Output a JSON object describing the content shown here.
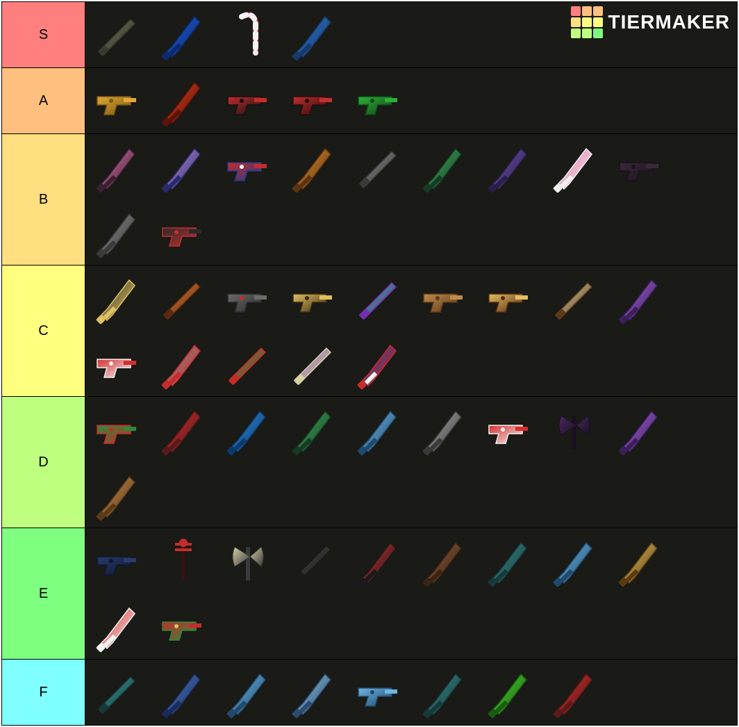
{
  "background_color": "#1a1a17",
  "border_color": "#000000",
  "brand": {
    "text": "TIERMAKER",
    "text_color": "#ffffff",
    "grid_colors": [
      "#ff7f7f",
      "#ffbf7f",
      "#ffbf7f",
      "#ffdf7f",
      "#ffff7f",
      "#ffff7f",
      "#bfff7f",
      "#bfff7f",
      "#7fff7f"
    ]
  },
  "tiers": [
    {
      "label": "S",
      "color": "#ff7f7f",
      "items": [
        {
          "name": "combat-knife",
          "type": "knife",
          "colors": [
            "#6b6b55",
            "#3a3a2e"
          ]
        },
        {
          "name": "blue-lightsaber",
          "type": "sword",
          "colors": [
            "#1f5bd6",
            "#0c2a6e"
          ]
        },
        {
          "name": "candy-cane",
          "type": "cane",
          "colors": [
            "#d62e2e",
            "#f2f2f2"
          ]
        },
        {
          "name": "azure-scimitar",
          "type": "sword",
          "colors": [
            "#2f74d0",
            "#163a6b"
          ]
        }
      ]
    },
    {
      "label": "A",
      "color": "#ffbf7f",
      "items": [
        {
          "name": "golden-pistol",
          "type": "gun",
          "colors": [
            "#e0a838",
            "#7a5612"
          ]
        },
        {
          "name": "crimson-flame-sword",
          "type": "sword",
          "colors": [
            "#d73a1e",
            "#5b1408"
          ]
        },
        {
          "name": "red-blaster",
          "type": "gun",
          "colors": [
            "#c72c2c",
            "#111111"
          ]
        },
        {
          "name": "red-raygun",
          "type": "gun",
          "colors": [
            "#c23030",
            "#2a0a0a"
          ]
        },
        {
          "name": "green-pistol",
          "type": "gun",
          "colors": [
            "#2fae3a",
            "#0f4716"
          ]
        }
      ]
    },
    {
      "label": "B",
      "color": "#ffdf7f",
      "items": [
        {
          "name": "pink-chainsaw-sword",
          "type": "sword",
          "colors": [
            "#d86fa4",
            "#3b2030"
          ]
        },
        {
          "name": "pixel-sword",
          "type": "sword",
          "colors": [
            "#b98fd6",
            "#2a2a6e"
          ]
        },
        {
          "name": "patriot-launcher",
          "type": "gun",
          "colors": [
            "#c72c2c",
            "#1f3a8a",
            "#f2f2f2"
          ]
        },
        {
          "name": "orange-greatsword",
          "type": "sword",
          "colors": [
            "#e08a2e",
            "#5b3410"
          ]
        },
        {
          "name": "grey-dagger",
          "type": "knife",
          "colors": [
            "#8a8a8a",
            "#3a3a3a"
          ]
        },
        {
          "name": "emerald-blade",
          "type": "sword",
          "colors": [
            "#3fae5a",
            "#163a24"
          ]
        },
        {
          "name": "violet-sword",
          "type": "sword",
          "colors": [
            "#6f4fae",
            "#2a1f4a"
          ]
        },
        {
          "name": "pink-winged-sword",
          "type": "sword",
          "colors": [
            "#e06fa4",
            "#f2f2f2"
          ]
        },
        {
          "name": "dark-revolver",
          "type": "gun",
          "colors": [
            "#3a2a3a",
            "#1a121a"
          ]
        },
        {
          "name": "grey-scimitar",
          "type": "sword",
          "colors": [
            "#8a8a8a",
            "#3a3a3a"
          ]
        },
        {
          "name": "black-red-pistol",
          "type": "gun",
          "colors": [
            "#2a2a2a",
            "#c23030"
          ]
        }
      ]
    },
    {
      "label": "C",
      "color": "#ffff7f",
      "items": [
        {
          "name": "spiked-dark-blade",
          "type": "sword",
          "colors": [
            "#3a3a2a",
            "#e0c060"
          ]
        },
        {
          "name": "flame-dagger",
          "type": "knife",
          "colors": [
            "#e07a2e",
            "#5b2a10"
          ]
        },
        {
          "name": "sci-fi-cannon",
          "type": "gun",
          "colors": [
            "#6a6a6a",
            "#2a2a2a",
            "#c23030"
          ]
        },
        {
          "name": "winged-revolver",
          "type": "gun",
          "colors": [
            "#e0c060",
            "#3a2a10"
          ]
        },
        {
          "name": "prism-dagger",
          "type": "knife",
          "colors": [
            "#2fae7a",
            "#6f2fae"
          ]
        },
        {
          "name": "wood-pistol",
          "type": "gun",
          "colors": [
            "#c28a4a",
            "#5b3a1a"
          ]
        },
        {
          "name": "spiked-flintlock",
          "type": "gun",
          "colors": [
            "#e0c060",
            "#5b2a10"
          ]
        },
        {
          "name": "bone-kris",
          "type": "knife",
          "colors": [
            "#d6cfa4",
            "#5b3a1a"
          ]
        },
        {
          "name": "amethyst-sword",
          "type": "sword",
          "colors": [
            "#a45fd6",
            "#3a1f5b"
          ]
        },
        {
          "name": "candy-pistol",
          "type": "gun",
          "colors": [
            "#d62e2e",
            "#f2f2f2"
          ]
        },
        {
          "name": "red-gem-sword",
          "type": "sword",
          "colors": [
            "#8a8a8a",
            "#c72c2c"
          ]
        },
        {
          "name": "green-xmas-dagger",
          "type": "knife",
          "colors": [
            "#2f8a3a",
            "#c72c2c"
          ]
        },
        {
          "name": "purple-cane-kris",
          "type": "knife",
          "colors": [
            "#8a5fae",
            "#d6cfa4"
          ]
        },
        {
          "name": "star-machete",
          "type": "sword",
          "colors": [
            "#2a3a8a",
            "#c72c2c",
            "#f2f2f2"
          ]
        }
      ]
    },
    {
      "label": "D",
      "color": "#bfff7f",
      "items": [
        {
          "name": "green-red-revolver",
          "type": "gun",
          "colors": [
            "#2f8a3a",
            "#c72c2c"
          ]
        },
        {
          "name": "red-sawblade",
          "type": "sword",
          "colors": [
            "#c72c2c",
            "#5b1a1a"
          ]
        },
        {
          "name": "blue-energy-sword",
          "type": "sword",
          "colors": [
            "#2f8ad6",
            "#0c3a6e"
          ]
        },
        {
          "name": "green-leaf-blade",
          "type": "sword",
          "colors": [
            "#3fae5a",
            "#163a24"
          ]
        },
        {
          "name": "ice-sword",
          "type": "sword",
          "colors": [
            "#6fb4e0",
            "#1f4a6e"
          ]
        },
        {
          "name": "silver-rapier",
          "type": "sword",
          "colors": [
            "#aaaaaa",
            "#3a3a3a"
          ]
        },
        {
          "name": "candy-revolver",
          "type": "gun",
          "colors": [
            "#d62e2e",
            "#f2f2f2"
          ]
        },
        {
          "name": "dark-purple-axe",
          "type": "axe",
          "colors": [
            "#4a2a5b",
            "#1a0f24"
          ]
        },
        {
          "name": "purple-crystal-sword",
          "type": "sword",
          "colors": [
            "#a45fd6",
            "#3a1f5b"
          ]
        },
        {
          "name": "bronze-ornate-sword",
          "type": "sword",
          "colors": [
            "#c28a4a",
            "#5b3a1a"
          ]
        }
      ]
    },
    {
      "label": "E",
      "color": "#7fff7f",
      "items": [
        {
          "name": "navy-revolver",
          "type": "gun",
          "colors": [
            "#2a3a6e",
            "#10182e"
          ]
        },
        {
          "name": "red-cross-staff",
          "type": "staff",
          "colors": [
            "#c72c2c",
            "#3a1010"
          ]
        },
        {
          "name": "skull-axe",
          "type": "axe",
          "colors": [
            "#d6cfa4",
            "#3a3a3a"
          ]
        },
        {
          "name": "thin-dark-knife",
          "type": "knife",
          "colors": [
            "#4a4a4a",
            "#1a1a1a"
          ]
        },
        {
          "name": "black-red-katana",
          "type": "sword",
          "colors": [
            "#c72c2c",
            "#1a1a1a"
          ]
        },
        {
          "name": "brown-cutlass",
          "type": "sword",
          "colors": [
            "#8a5a3a",
            "#3a2414"
          ]
        },
        {
          "name": "teal-scythe-blade",
          "type": "sword",
          "colors": [
            "#3a8a8a",
            "#163a3a"
          ]
        },
        {
          "name": "ice-greatsword",
          "type": "sword",
          "colors": [
            "#6fb4e0",
            "#1f4a6e"
          ]
        },
        {
          "name": "gold-shield-sword",
          "type": "sword",
          "colors": [
            "#e0c060",
            "#5b3a10"
          ]
        },
        {
          "name": "candy-greatsword",
          "type": "sword",
          "colors": [
            "#d62e2e",
            "#f2f2f2"
          ]
        },
        {
          "name": "gift-box-gun",
          "type": "gun",
          "colors": [
            "#c72c2c",
            "#2f8a3a",
            "#e0c060"
          ]
        }
      ]
    },
    {
      "label": "F",
      "color": "#7fffff",
      "items": [
        {
          "name": "teal-curved-dagger",
          "type": "knife",
          "colors": [
            "#3a9a9a",
            "#163a3a"
          ]
        },
        {
          "name": "frost-cleaver",
          "type": "sword",
          "colors": [
            "#4a7ac2",
            "#1a2a5b"
          ]
        },
        {
          "name": "snowflake-sword",
          "type": "sword",
          "colors": [
            "#6fb4e0",
            "#1f4a6e"
          ]
        },
        {
          "name": "ice-shard-sword",
          "type": "sword",
          "colors": [
            "#8ac2e0",
            "#2a4a6e"
          ]
        },
        {
          "name": "blue-ice-revolver",
          "type": "gun",
          "colors": [
            "#6fb4e0",
            "#1f4a6e"
          ]
        },
        {
          "name": "teal-chainsaw",
          "type": "sword",
          "colors": [
            "#3a8a8a",
            "#163a3a"
          ]
        },
        {
          "name": "toxic-green-sword",
          "type": "sword",
          "colors": [
            "#4ad62e",
            "#1a5b10"
          ]
        },
        {
          "name": "red-flame-greatsword",
          "type": "sword",
          "colors": [
            "#c72c2c",
            "#5b1a1a"
          ]
        }
      ]
    }
  ]
}
